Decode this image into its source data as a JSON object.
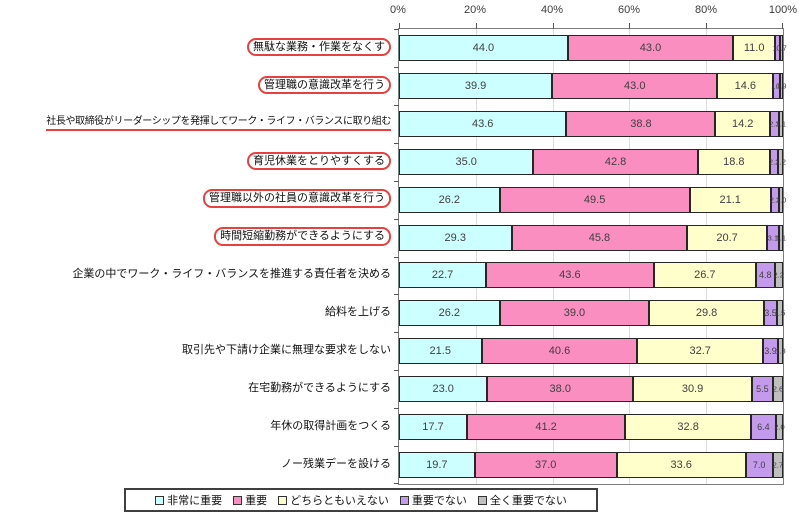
{
  "chart_data": {
    "type": "bar",
    "variant": "horizontal-stacked-percentage",
    "title": "",
    "x_axis": {
      "tick_labels": [
        "0%",
        "20%",
        "40%",
        "60%",
        "80%",
        "100%"
      ],
      "min": 0,
      "max": 100,
      "grid": true
    },
    "legend": {
      "position": "bottom",
      "entries": [
        {
          "label": "非常に重要",
          "color": "#ccffff"
        },
        {
          "label": "重要",
          "color": "#fa8ec0"
        },
        {
          "label": "どちらともいえない",
          "color": "#ffffcc"
        },
        {
          "label": "重要でない",
          "color": "#c49bec"
        },
        {
          "label": "全く重要でない",
          "color": "#bfbfbf"
        }
      ]
    },
    "annotation_color": "#e84040",
    "categories": [
      "無駄な業務・作業をなくす",
      "管理職の意識改革を行う",
      "社長や取締役がリーダーシップを発揮してワーク・ライフ・バランスに取り組む",
      "育児休業をとりやすくする",
      "管理職以外の社員の意識改革を行う",
      "時間短縮勤務ができるようにする",
      "企業の中でワーク・ライフ・バランスを推進する責任者を決める",
      "給料を上げる",
      "取引先や下請け企業に無理な要求をしない",
      "在宅勤務ができるようにする",
      "年休の取得計画をつくる",
      "ノー残業デーを設ける"
    ],
    "highlights": [
      "box",
      "box",
      "underline",
      "box",
      "box",
      "box",
      "none",
      "none",
      "none",
      "none",
      "none",
      "none"
    ],
    "series": [
      {
        "name": "非常に重要",
        "values": [
          44.0,
          39.9,
          43.6,
          35.0,
          26.2,
          29.3,
          22.7,
          26.2,
          21.5,
          23.0,
          17.7,
          19.7
        ]
      },
      {
        "name": "重要",
        "values": [
          43.0,
          43.0,
          38.8,
          42.8,
          49.5,
          45.8,
          43.6,
          39.0,
          40.6,
          38.0,
          41.2,
          37.0
        ]
      },
      {
        "name": "どちらともいえない",
        "values": [
          11.0,
          14.6,
          14.2,
          18.8,
          21.1,
          20.7,
          26.7,
          29.8,
          32.7,
          30.9,
          32.8,
          33.6
        ]
      },
      {
        "name": "重要でない",
        "values": [
          1.3,
          1.6,
          2.3,
          2.2,
          2.2,
          3.1,
          4.8,
          3.5,
          3.9,
          5.5,
          6.4,
          7.0
        ]
      },
      {
        "name": "全く重要でない",
        "values": [
          0.7,
          0.9,
          1.1,
          1.2,
          1.0,
          1.1,
          2.2,
          1.5,
          1.3,
          2.6,
          2.0,
          2.7
        ]
      }
    ]
  }
}
